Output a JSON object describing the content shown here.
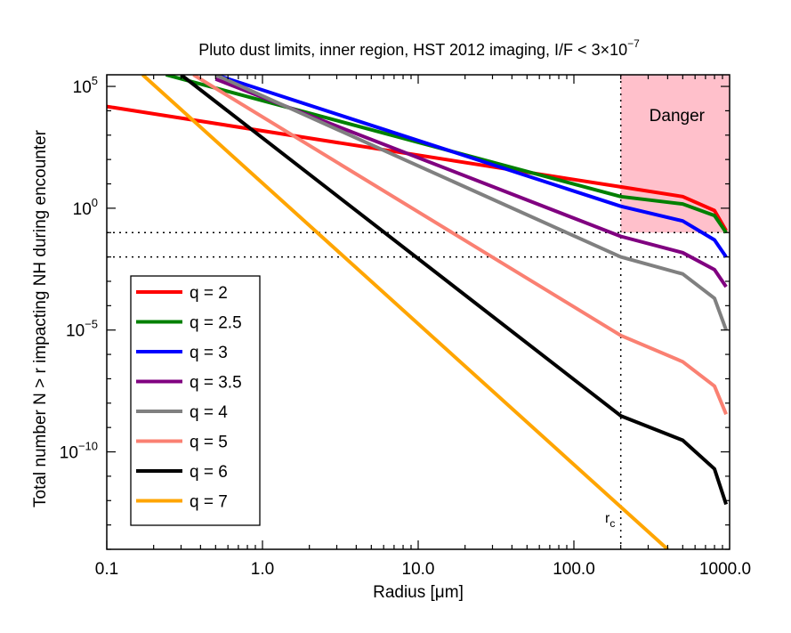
{
  "chart_data": {
    "type": "line",
    "title": "Pluto dust limits, inner region, HST 2012 imaging, I/F < 3×10",
    "title_sup": "−7",
    "xlabel": "Radius [μm]",
    "ylabel": "Total number N > r impacting NH during encounter",
    "xscale": "log",
    "yscale": "log",
    "xlim": [
      0.1,
      1000
    ],
    "ylim": [
      1e-14,
      300000.0
    ],
    "x_tick_labels": [
      "0.1",
      "1.0",
      "10.0",
      "100.0",
      "1000.0"
    ],
    "y_tick_labels": [
      {
        "value": 100000.0,
        "base": "10",
        "exp": "5"
      },
      {
        "value": 1,
        "base": "10",
        "exp": "0"
      },
      {
        "value": 1e-05,
        "base": "10",
        "exp": "−5"
      },
      {
        "value": 1e-10,
        "base": "10",
        "exp": "−10"
      }
    ],
    "grid": false,
    "legend_position": "bottom-left",
    "danger_region": {
      "label": "Danger",
      "x_min": 200,
      "x_max": 1000,
      "y_min": 0.1,
      "color": "#ffc0cb"
    },
    "reference_lines": {
      "horizontal": [
        0.1,
        0.01
      ],
      "vertical": {
        "x": 200,
        "label": "r",
        "label_sub": "c"
      }
    },
    "series": [
      {
        "name": "q = 2",
        "color": "#ff0000",
        "points": [
          [
            0.1,
            15000
          ],
          [
            200,
            7.5
          ],
          [
            500,
            3.0
          ],
          [
            800,
            0.8
          ],
          [
            950,
            0.12
          ]
        ]
      },
      {
        "name": "q = 2.5",
        "color": "#008000",
        "points": [
          [
            0.24,
            300000
          ],
          [
            200,
            3.0
          ],
          [
            500,
            1.5
          ],
          [
            800,
            0.5
          ],
          [
            950,
            0.1
          ]
        ]
      },
      {
        "name": "q = 3",
        "color": "#0000ff",
        "points": [
          [
            0.5,
            300000
          ],
          [
            200,
            1.2
          ],
          [
            500,
            0.3
          ],
          [
            800,
            0.05
          ],
          [
            950,
            0.01
          ]
        ]
      },
      {
        "name": "q = 3.5",
        "color": "#800080",
        "points": [
          [
            0.5,
            200000
          ],
          [
            200,
            0.07
          ],
          [
            500,
            0.015
          ],
          [
            800,
            0.003
          ],
          [
            950,
            0.0006
          ]
        ]
      },
      {
        "name": "q = 4",
        "color": "#808080",
        "points": [
          [
            0.5,
            300000
          ],
          [
            200,
            0.01
          ],
          [
            500,
            0.002
          ],
          [
            800,
            0.0002
          ],
          [
            950,
            1e-05
          ]
        ]
      },
      {
        "name": "q = 5",
        "color": "#fa8072",
        "points": [
          [
            0.36,
            300000
          ],
          [
            200,
            6e-06
          ],
          [
            500,
            5e-07
          ],
          [
            800,
            5e-08
          ],
          [
            950,
            3.5e-09
          ]
        ]
      },
      {
        "name": "q = 6",
        "color": "#000000",
        "points": [
          [
            0.3,
            300000
          ],
          [
            200,
            3e-09
          ],
          [
            500,
            3e-10
          ],
          [
            800,
            2e-11
          ],
          [
            950,
            7e-13
          ]
        ]
      },
      {
        "name": "q = 7",
        "color": "#ffa500",
        "points": [
          [
            0.17,
            300000
          ],
          [
            400,
            1e-14
          ]
        ]
      }
    ]
  }
}
